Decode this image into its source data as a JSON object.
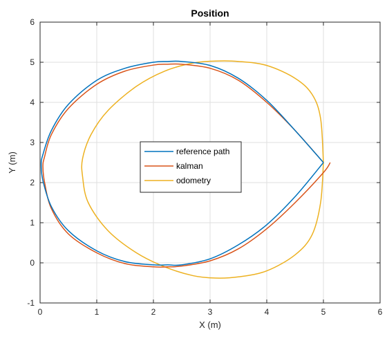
{
  "chart_data": {
    "type": "line",
    "title": "Position",
    "xlabel": "X (m)",
    "ylabel": "Y (m)",
    "xlim": [
      0,
      6
    ],
    "ylim": [
      -1,
      6
    ],
    "xticks": [
      "0",
      "1",
      "2",
      "3",
      "4",
      "5",
      "6"
    ],
    "yticks": [
      "-1",
      "0",
      "1",
      "2",
      "3",
      "4",
      "5",
      "6"
    ],
    "grid": true,
    "legend_position": "center",
    "series": [
      {
        "name": "reference path",
        "color": "#0072BD",
        "x": [
          5.0,
          4.5,
          4.0,
          3.5,
          3.0,
          2.5,
          2.25,
          2.0,
          1.5,
          1.0,
          0.5,
          0.2,
          0.05,
          0.02,
          0.05,
          0.2,
          0.5,
          1.0,
          1.5,
          2.0,
          2.25,
          2.5,
          3.0,
          3.5,
          4.0,
          4.5,
          5.0
        ],
        "y": [
          2.5,
          3.3,
          4.05,
          4.6,
          4.92,
          5.02,
          5.02,
          5.0,
          4.85,
          4.55,
          3.95,
          3.3,
          2.7,
          2.45,
          2.05,
          1.4,
          0.8,
          0.3,
          0.03,
          -0.05,
          -0.05,
          -0.05,
          0.1,
          0.45,
          0.95,
          1.65,
          2.5
        ]
      },
      {
        "name": "kalman",
        "color": "#D95319",
        "x": [
          5.0,
          4.5,
          4.0,
          3.5,
          3.0,
          2.5,
          2.25,
          2.0,
          1.5,
          1.0,
          0.5,
          0.2,
          0.08,
          0.05,
          0.08,
          0.2,
          0.5,
          1.0,
          1.5,
          2.0,
          2.25,
          2.5,
          3.0,
          3.5,
          4.0,
          4.5,
          5.0,
          5.12
        ],
        "y": [
          2.5,
          3.3,
          4.0,
          4.55,
          4.85,
          4.95,
          4.95,
          4.93,
          4.78,
          4.45,
          3.85,
          3.2,
          2.65,
          2.4,
          2.0,
          1.35,
          0.72,
          0.25,
          -0.02,
          -0.1,
          -0.1,
          -0.08,
          0.05,
          0.35,
          0.85,
          1.5,
          2.25,
          2.5
        ]
      },
      {
        "name": "odometry",
        "color": "#EDB120",
        "x": [
          5.0,
          4.95,
          4.8,
          4.5,
          4.0,
          3.5,
          3.1,
          2.7,
          2.2,
          1.7,
          1.2,
          0.9,
          0.75,
          0.75,
          0.85,
          1.2,
          1.7,
          2.2,
          2.7,
          3.1,
          3.5,
          4.0,
          4.5,
          4.8,
          4.95,
          5.0
        ],
        "y": [
          2.5,
          3.6,
          4.2,
          4.6,
          4.92,
          5.02,
          5.03,
          4.98,
          4.78,
          4.4,
          3.8,
          3.2,
          2.6,
          2.15,
          1.5,
          0.8,
          0.25,
          -0.1,
          -0.32,
          -0.38,
          -0.35,
          -0.2,
          0.2,
          0.7,
          1.5,
          2.5
        ]
      }
    ]
  }
}
